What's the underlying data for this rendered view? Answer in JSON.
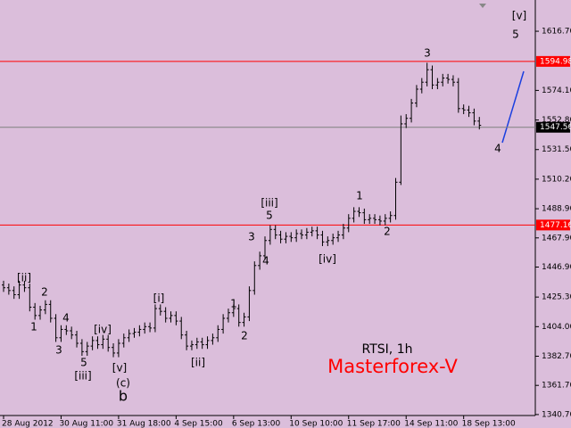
{
  "chart_data": {
    "type": "ohlc",
    "title": "RTSI, 1h",
    "subtitle": "Masterforex-V",
    "categories": [
      "28 Aug 2012",
      null,
      null,
      null,
      null,
      null,
      null,
      null,
      null,
      null,
      null,
      "30 Aug 11:00",
      null,
      null,
      null,
      null,
      null,
      null,
      null,
      null,
      null,
      null,
      "31 Aug 18:00",
      null,
      null,
      null,
      null,
      null,
      null,
      null,
      null,
      null,
      null,
      "4 Sep 15:00",
      null,
      null,
      null,
      null,
      null,
      null,
      null,
      null,
      null,
      null,
      "6 Sep 13:00",
      null,
      null,
      null,
      null,
      null,
      null,
      null,
      null,
      null,
      null,
      "10 Sep 10:00",
      null,
      null,
      null,
      null,
      null,
      null,
      null,
      null,
      null,
      null,
      "11 Sep 17:00",
      null,
      null,
      null,
      null,
      null,
      null,
      null,
      null,
      null,
      null,
      "14 Sep 11:00",
      null,
      null,
      null,
      null,
      null,
      null,
      null,
      null,
      null,
      null,
      "18 Sep 13:00",
      null,
      null,
      null
    ],
    "open": [
      1434,
      1432,
      1430,
      1427,
      1434,
      1432,
      1418,
      1412,
      1416,
      1420,
      1410,
      1396,
      1402,
      1401,
      1398,
      1392,
      1386,
      1390,
      1394,
      1391,
      1395,
      1389,
      1385,
      1392,
      1396,
      1399,
      1400,
      1402,
      1404,
      1403,
      1417,
      1415,
      1410,
      1412,
      1408,
      1398,
      1390,
      1391,
      1393,
      1391,
      1394,
      1396,
      1402,
      1410,
      1414,
      1417,
      1407,
      1411,
      1430,
      1448,
      1455,
      1466,
      1474,
      1470,
      1467,
      1469,
      1468,
      1471,
      1470,
      1472,
      1473,
      1470,
      1465,
      1466,
      1468,
      1470,
      1475,
      1482,
      1487,
      1486,
      1481,
      1482,
      1481,
      1480,
      1482,
      1484,
      1508,
      1550,
      1554,
      1565,
      1575,
      1580,
      1589,
      1578,
      1580,
      1583,
      1582,
      1580,
      1561,
      1560,
      1558,
      1552
    ],
    "high": [
      1437,
      1435,
      1433,
      1437,
      1437,
      1435,
      1421,
      1419,
      1423,
      1423,
      1413,
      1405,
      1405,
      1404,
      1401,
      1395,
      1393,
      1397,
      1397,
      1398,
      1398,
      1392,
      1395,
      1399,
      1402,
      1403,
      1405,
      1407,
      1407,
      1420,
      1420,
      1418,
      1415,
      1415,
      1411,
      1401,
      1394,
      1396,
      1396,
      1397,
      1399,
      1405,
      1413,
      1417,
      1420,
      1420,
      1414,
      1433,
      1451,
      1458,
      1469,
      1477,
      1477,
      1473,
      1472,
      1472,
      1474,
      1474,
      1475,
      1476,
      1476,
      1473,
      1469,
      1471,
      1473,
      1478,
      1485,
      1490,
      1490,
      1489,
      1485,
      1485,
      1484,
      1485,
      1487,
      1511,
      1556,
      1557,
      1568,
      1578,
      1583,
      1594,
      1592,
      1583,
      1586,
      1586,
      1585,
      1583,
      1564,
      1563,
      1561,
      1555
    ],
    "low": [
      1429,
      1427,
      1424,
      1424,
      1429,
      1415,
      1409,
      1409,
      1413,
      1407,
      1393,
      1393,
      1398,
      1395,
      1389,
      1383,
      1383,
      1387,
      1388,
      1388,
      1386,
      1382,
      1382,
      1389,
      1393,
      1396,
      1397,
      1399,
      1400,
      1400,
      1412,
      1407,
      1407,
      1405,
      1395,
      1387,
      1387,
      1388,
      1388,
      1388,
      1391,
      1393,
      1399,
      1407,
      1411,
      1404,
      1404,
      1408,
      1427,
      1445,
      1452,
      1463,
      1467,
      1464,
      1464,
      1465,
      1465,
      1467,
      1467,
      1469,
      1467,
      1462,
      1462,
      1463,
      1465,
      1467,
      1472,
      1479,
      1483,
      1478,
      1478,
      1478,
      1477,
      1477,
      1479,
      1481,
      1506,
      1547,
      1551,
      1562,
      1572,
      1577,
      1575,
      1575,
      1577,
      1579,
      1577,
      1558,
      1557,
      1555,
      1549,
      1546
    ],
    "close": [
      1432,
      1430,
      1427,
      1434,
      1432,
      1418,
      1412,
      1416,
      1420,
      1410,
      1396,
      1402,
      1401,
      1398,
      1392,
      1386,
      1390,
      1394,
      1391,
      1395,
      1389,
      1385,
      1392,
      1396,
      1399,
      1400,
      1402,
      1404,
      1403,
      1417,
      1415,
      1410,
      1412,
      1408,
      1398,
      1390,
      1391,
      1393,
      1391,
      1394,
      1396,
      1402,
      1410,
      1414,
      1417,
      1407,
      1411,
      1430,
      1448,
      1455,
      1466,
      1474,
      1470,
      1467,
      1469,
      1468,
      1471,
      1470,
      1472,
      1473,
      1470,
      1465,
      1466,
      1468,
      1470,
      1475,
      1482,
      1487,
      1486,
      1481,
      1482,
      1481,
      1480,
      1482,
      1484,
      1508,
      1550,
      1554,
      1565,
      1575,
      1580,
      1589,
      1578,
      1580,
      1583,
      1582,
      1580,
      1561,
      1560,
      1558,
      1552,
      1549
    ],
    "color": "#000000",
    "ylim": [
      1340,
      1639.2
    ],
    "yticks": [
      {
        "value": 1616.7,
        "label": "1616.70"
      },
      {
        "value": 1574.1,
        "label": "1574.10"
      },
      {
        "value": 1552.8,
        "label": "1552.80"
      },
      {
        "value": 1531.5,
        "label": "1531.50"
      },
      {
        "value": 1510.2,
        "label": "1510.20"
      },
      {
        "value": 1488.9,
        "label": "1488.90"
      },
      {
        "value": 1467.9,
        "label": "1467.90"
      },
      {
        "value": 1446.9,
        "label": "1446.90"
      },
      {
        "value": 1425.3,
        "label": "1425.30"
      },
      {
        "value": 1404.0,
        "label": "1404.00"
      },
      {
        "value": 1382.7,
        "label": "1382.70"
      },
      {
        "value": 1361.7,
        "label": "1361.70"
      },
      {
        "value": 1340.7,
        "label": "1340.70"
      }
    ],
    "levels": [
      {
        "value": 1594.98,
        "color": "#ff0000"
      },
      {
        "value": 1547.56,
        "color": "#808080"
      },
      {
        "value": 1477.16,
        "color": "#ff0000"
      }
    ],
    "annotations": [
      "[ii]",
      "2",
      "1",
      "4",
      "3",
      "5",
      "[iii]",
      "[iv]",
      "[v]",
      "(c)",
      "b",
      "[i]",
      "[ii]",
      "1",
      "2",
      "3",
      "4",
      "5",
      "[iii]",
      "[iv]",
      "1",
      "2",
      "3",
      "4",
      "[v]",
      "5"
    ]
  }
}
